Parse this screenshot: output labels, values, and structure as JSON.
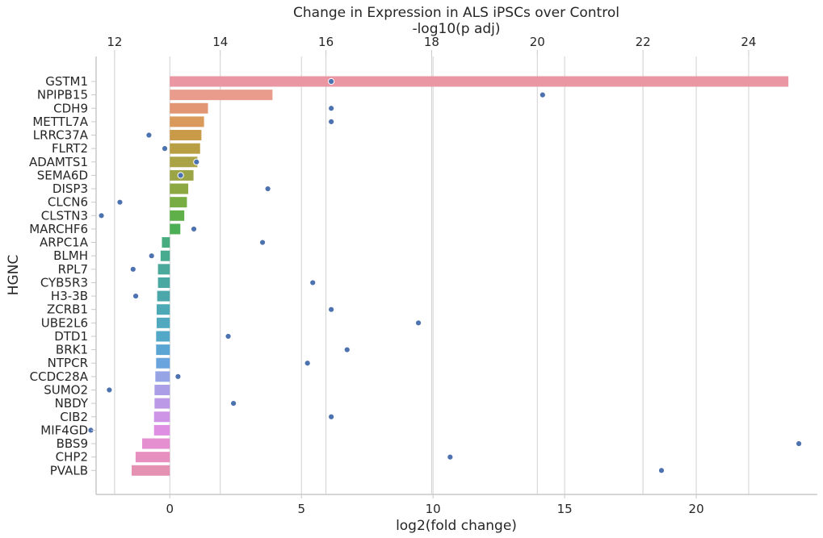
{
  "chart_data": {
    "type": "bar",
    "orientation": "horizontal",
    "title": "Change in Expression in ALS iPSCs over Control",
    "top_axis_label": "-log10(p adj)",
    "xlabel": "log2(fold change)",
    "ylabel": "HGNC",
    "bottom_xlim": [
      -2.8,
      24.6
    ],
    "bottom_ticks": [
      "0",
      "5",
      "10",
      "15",
      "20"
    ],
    "top_xlim": [
      11.65,
      25.3
    ],
    "top_ticks": [
      "12",
      "14",
      "16",
      "18",
      "20",
      "22",
      "24"
    ],
    "grid": "vertical",
    "point_color": "#4c72b0",
    "categories": [
      "GSTM1",
      "NPIPB15",
      "CDH9",
      "METTL7A",
      "LRRC37A",
      "FLRT2",
      "ADAMTS1",
      "SEMA6D",
      "DISP3",
      "CLCN6",
      "CLSTN3",
      "MARCHF6",
      "ARPC1A",
      "BLMH",
      "RPL7",
      "CYB5R3",
      "H3-3B",
      "ZCRB1",
      "UBE2L6",
      "DTD1",
      "BRK1",
      "NTPCR",
      "CCDC28A",
      "SUMO2",
      "NBDY",
      "CIB2",
      "MIF4GD",
      "BBS9",
      "CHP2",
      "PVALB"
    ],
    "series": [
      {
        "name": "log2(fold change)",
        "kind": "bar",
        "values": [
          23.5,
          3.9,
          1.45,
          1.3,
          1.2,
          1.15,
          1.05,
          0.9,
          0.7,
          0.65,
          0.55,
          0.4,
          -0.3,
          -0.35,
          -0.45,
          -0.45,
          -0.48,
          -0.5,
          -0.5,
          -0.52,
          -0.52,
          -0.52,
          -0.55,
          -0.58,
          -0.58,
          -0.6,
          -0.6,
          -1.05,
          -1.3,
          -1.45
        ],
        "colors": [
          "#ea96a3",
          "#e99c8c",
          "#e29674",
          "#d99a5b",
          "#c99a48",
          "#b99f44",
          "#aba447",
          "#9ca545",
          "#8ca843",
          "#77ad43",
          "#5fb049",
          "#4daf55",
          "#48ad7e",
          "#48aa8f",
          "#4aa99a",
          "#4aa8a3",
          "#4ba7aa",
          "#4da9b5",
          "#51a9bf",
          "#54a8c7",
          "#5aa5d3",
          "#6aa4df",
          "#96a4e6",
          "#ab9de6",
          "#bb99e6",
          "#ce95e6",
          "#df8fe1",
          "#e68fd0",
          "#e78fbf",
          "#e591b1"
        ]
      },
      {
        "name": "-log10(p adj)",
        "kind": "point",
        "values": [
          16.1,
          20.1,
          16.1,
          16.1,
          12.65,
          12.95,
          13.55,
          13.25,
          14.9,
          12.1,
          11.75,
          13.5,
          14.8,
          12.7,
          12.35,
          15.75,
          12.4,
          16.1,
          17.75,
          14.15,
          16.4,
          15.65,
          13.2,
          11.9,
          14.25,
          16.1,
          11.55,
          24.95,
          18.35,
          22.35
        ]
      }
    ]
  }
}
